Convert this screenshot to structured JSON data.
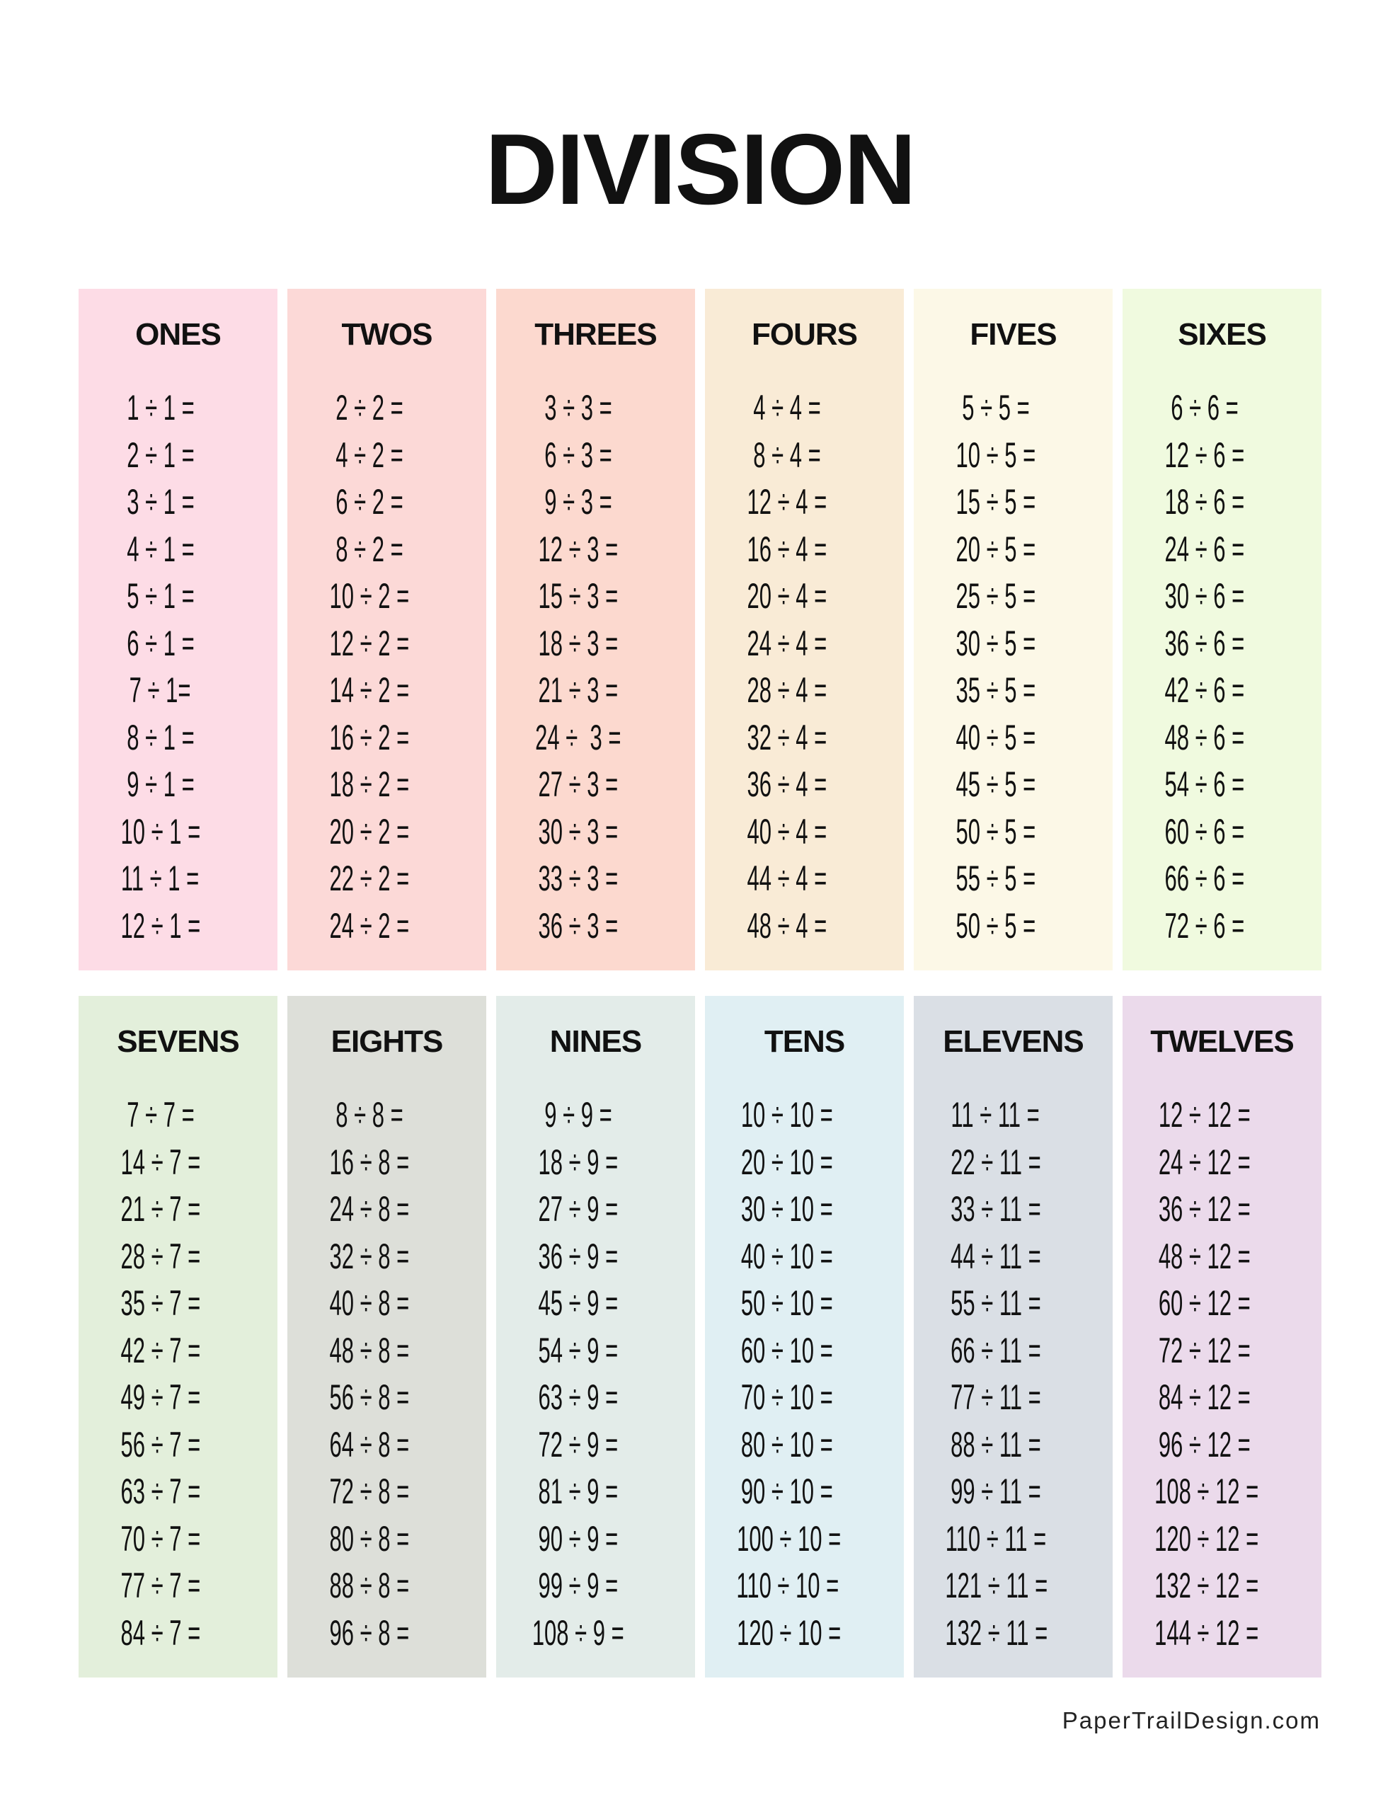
{
  "title": "DIVISION",
  "footer": "PaperTrailDesign.com",
  "rows": [
    [
      {
        "heading": "ONES",
        "color": "#fddce6",
        "equations": [
          "1 ÷ 1 =",
          "2 ÷ 1 =",
          "3 ÷ 1 =",
          "4 ÷ 1 =",
          "5 ÷ 1 =",
          "6 ÷ 1 =",
          "7 ÷ 1=",
          "8 ÷ 1 =",
          "9 ÷ 1 =",
          "10 ÷ 1 =",
          "11 ÷ 1 =",
          "12 ÷ 1 ="
        ]
      },
      {
        "heading": "TWOS",
        "color": "#fcd9d7",
        "equations": [
          "2 ÷ 2 =",
          "4 ÷ 2 =",
          "6 ÷ 2 =",
          "8 ÷ 2 =",
          "10 ÷ 2 =",
          "12 ÷ 2 =",
          "14 ÷ 2 =",
          "16 ÷ 2 =",
          "18 ÷ 2 =",
          "20 ÷ 2 =",
          "22 ÷ 2 =",
          "24 ÷ 2 ="
        ]
      },
      {
        "heading": "THREES",
        "color": "#fcd9cf",
        "equations": [
          "3 ÷ 3 =",
          "6 ÷ 3 =",
          "9 ÷ 3 =",
          "12 ÷ 3 =",
          "15 ÷ 3 =",
          "18 ÷ 3 =",
          "21 ÷ 3 =",
          "24 ÷  3 =",
          "27 ÷ 3 =",
          "30 ÷ 3 =",
          "33 ÷ 3 =",
          "36 ÷ 3 ="
        ]
      },
      {
        "heading": "FOURS",
        "color": "#f9ebd6",
        "equations": [
          "4 ÷ 4 =",
          "8 ÷ 4 =",
          "12 ÷ 4 =",
          "16 ÷ 4 =",
          "20 ÷ 4 =",
          "24 ÷ 4 =",
          "28 ÷ 4 =",
          "32 ÷ 4 =",
          "36 ÷ 4 =",
          "40 ÷ 4 =",
          "44 ÷ 4 =",
          "48 ÷ 4 ="
        ]
      },
      {
        "heading": "FIVES",
        "color": "#fcf8e7",
        "equations": [
          "5 ÷ 5 =",
          "10 ÷ 5 =",
          "15 ÷ 5 =",
          "20 ÷ 5 =",
          "25 ÷ 5 =",
          "30 ÷ 5 =",
          "35 ÷ 5 =",
          "40 ÷ 5 =",
          "45 ÷ 5 =",
          "50 ÷ 5 =",
          "55 ÷ 5 =",
          "50 ÷ 5 ="
        ]
      },
      {
        "heading": "SIXES",
        "color": "#f0fadf",
        "equations": [
          "6 ÷ 6 =",
          "12 ÷ 6 =",
          "18 ÷ 6 =",
          "24 ÷ 6 =",
          "30 ÷ 6 =",
          "36 ÷ 6 =",
          "42 ÷ 6 =",
          "48 ÷ 6 =",
          "54 ÷ 6 =",
          "60 ÷ 6 =",
          "66 ÷ 6 =",
          "72 ÷ 6 ="
        ]
      }
    ],
    [
      {
        "heading": "SEVENS",
        "color": "#e3efdb",
        "equations": [
          "7 ÷ 7 =",
          "14 ÷ 7 =",
          "21 ÷ 7 =",
          "28 ÷ 7 =",
          "35 ÷ 7 =",
          "42 ÷ 7 =",
          "49 ÷ 7 =",
          "56 ÷ 7 =",
          "63 ÷ 7 =",
          "70 ÷ 7 =",
          "77 ÷ 7 =",
          "84 ÷ 7 ="
        ]
      },
      {
        "heading": "EIGHTS",
        "color": "#dddfd9",
        "equations": [
          "8 ÷ 8 =",
          "16 ÷ 8 =",
          "24 ÷ 8 =",
          "32 ÷ 8 =",
          "40 ÷ 8 =",
          "48 ÷ 8 =",
          "56 ÷ 8 =",
          "64 ÷ 8 =",
          "72 ÷ 8 =",
          "80 ÷ 8 =",
          "88 ÷ 8 =",
          "96 ÷ 8 ="
        ]
      },
      {
        "heading": "NINES",
        "color": "#e3ece9",
        "equations": [
          "9 ÷ 9 =",
          "18 ÷ 9 =",
          "27 ÷ 9 =",
          "36 ÷ 9 =",
          "45 ÷ 9 =",
          "54 ÷ 9 =",
          "63 ÷ 9 =",
          "72 ÷ 9 =",
          "81 ÷ 9 =",
          "90 ÷ 9 =",
          "99 ÷ 9 =",
          "108 ÷ 9 ="
        ]
      },
      {
        "heading": "TENS",
        "color": "#e0eff3",
        "equations": [
          "10 ÷ 10 =",
          "20 ÷ 10 =",
          "30 ÷ 10 =",
          "40 ÷ 10 =",
          "50 ÷ 10 =",
          "60 ÷ 10 =",
          "70 ÷ 10 =",
          "80 ÷ 10 =",
          "90 ÷ 10 =",
          "100 ÷ 10 =",
          "110 ÷ 10 =",
          "120 ÷ 10 ="
        ]
      },
      {
        "heading": "ELEVENS",
        "color": "#dadfe5",
        "equations": [
          "11 ÷ 11 =",
          "22 ÷ 11 =",
          "33 ÷ 11 =",
          "44 ÷ 11 =",
          "55 ÷ 11 =",
          "66 ÷ 11 =",
          "77 ÷ 11 =",
          "88 ÷ 11 =",
          "99 ÷ 11 =",
          "110 ÷ 11 =",
          "121 ÷ 11 =",
          "132 ÷ 11 ="
        ]
      },
      {
        "heading": "TWELVES",
        "color": "#ebdaeb",
        "equations": [
          "12 ÷ 12 =",
          "24 ÷ 12 =",
          "36 ÷ 12 =",
          "48 ÷ 12 =",
          "60 ÷ 12 =",
          "72 ÷ 12 =",
          "84 ÷ 12 =",
          "96 ÷ 12 =",
          "108 ÷ 12 =",
          "120 ÷ 12 =",
          "132 ÷ 12 =",
          "144 ÷ 12 ="
        ]
      }
    ]
  ]
}
